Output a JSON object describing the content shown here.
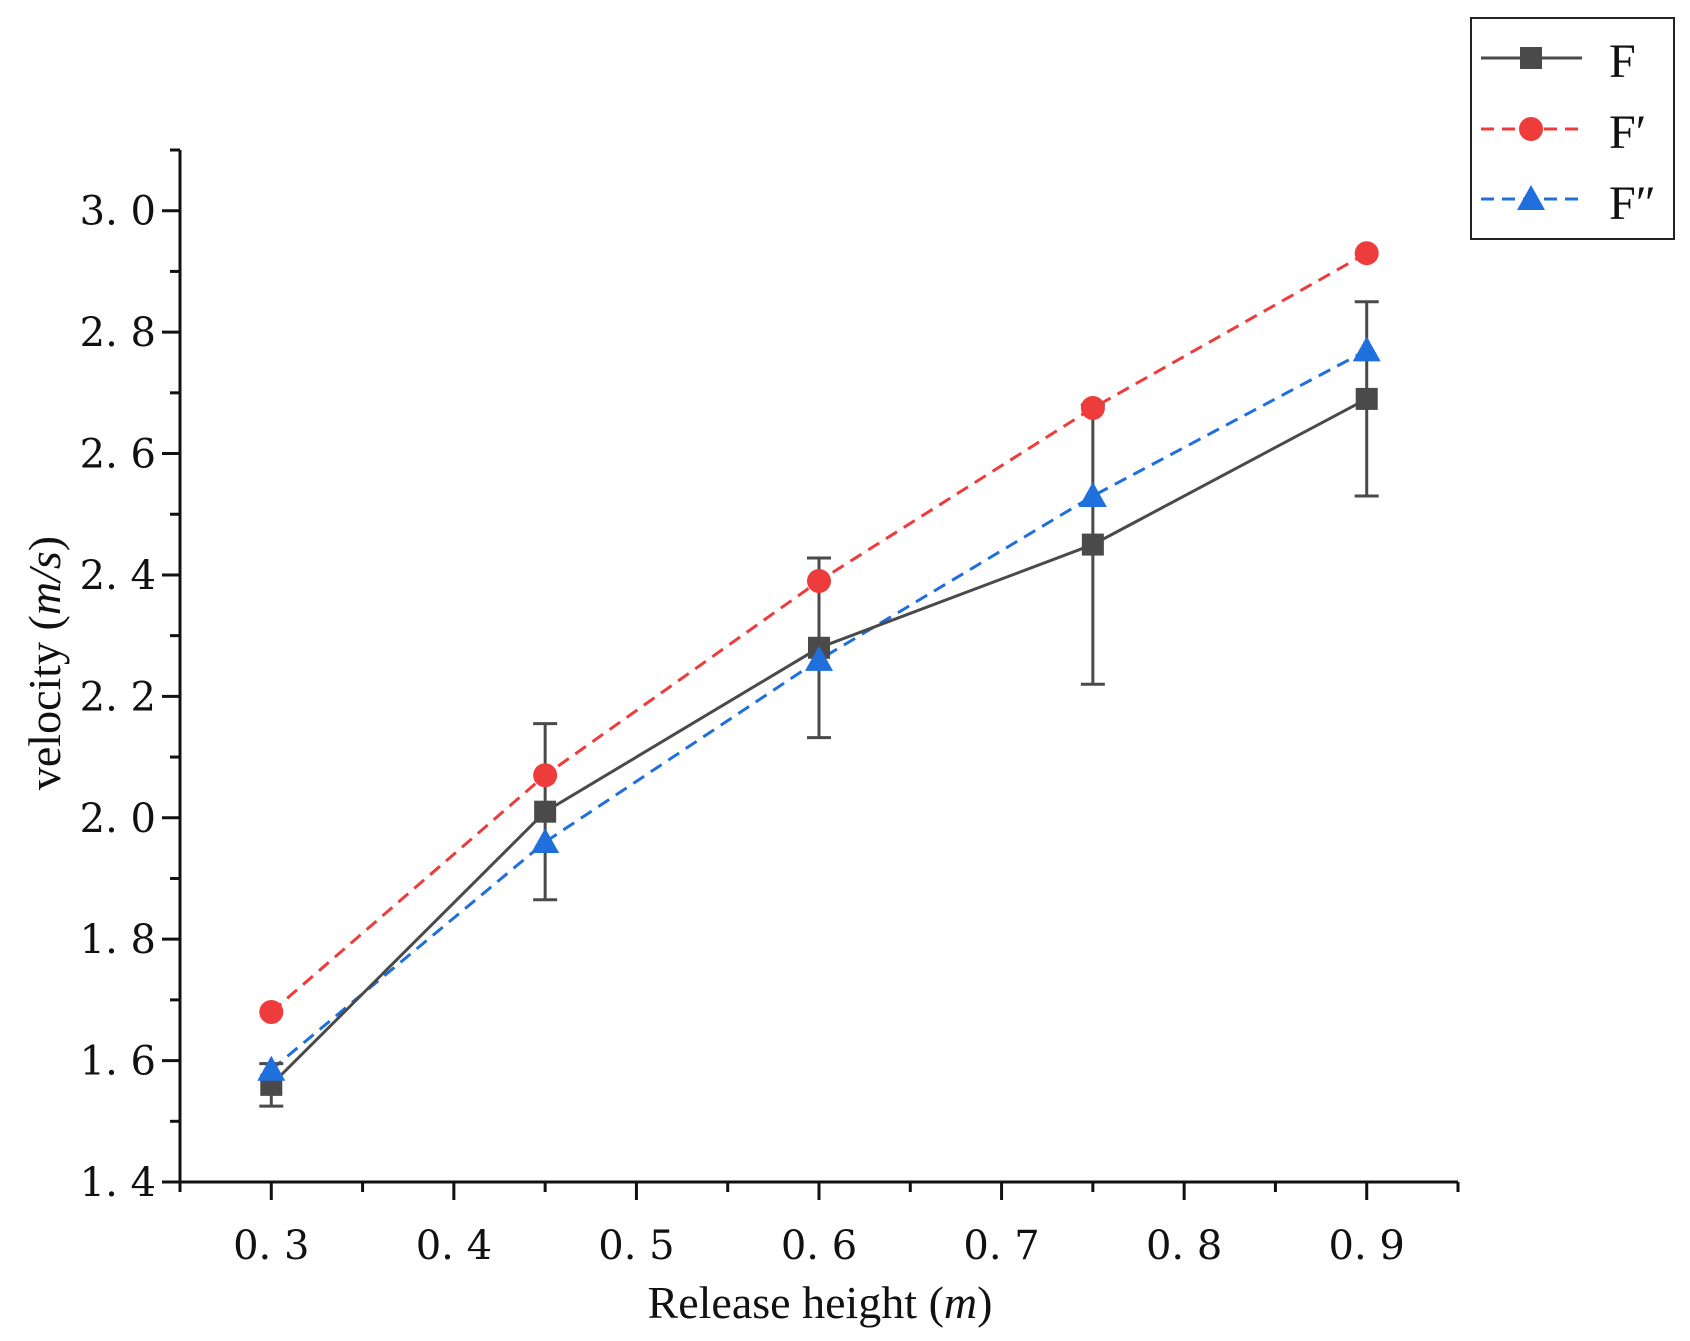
{
  "chart_data": {
    "type": "line",
    "title": "",
    "xlabel_text": "Release height",
    "xlabel_unit": "m",
    "ylabel_text": "velocity",
    "ylabel_unit": "m/s",
    "xlim": [
      0.25,
      0.95
    ],
    "ylim": [
      1.4,
      3.1
    ],
    "x_ticks": [
      0.3,
      0.4,
      0.5,
      0.6,
      0.7,
      0.8,
      0.9
    ],
    "x_tick_labels": [
      "0. 3",
      "0. 4",
      "0. 5",
      "0. 6",
      "0. 7",
      "0. 8",
      "0. 9"
    ],
    "y_ticks": [
      1.4,
      1.6,
      1.8,
      2.0,
      2.2,
      2.4,
      2.6,
      2.8,
      3.0
    ],
    "y_tick_labels": [
      "1. 4",
      "1. 6",
      "1. 8",
      "2. 0",
      "2. 2",
      "2. 4",
      "2. 6",
      "2. 8",
      "3. 0"
    ],
    "x": [
      0.3,
      0.45,
      0.6,
      0.75,
      0.9
    ],
    "series": [
      {
        "name": "F",
        "color": "#4a4a4a",
        "marker": "square",
        "line_style": "solid",
        "values": [
          1.56,
          2.01,
          2.28,
          2.45,
          2.69
        ],
        "error": [
          0.035,
          0.145,
          0.148,
          0.23,
          0.16
        ]
      },
      {
        "name": "F′",
        "color": "#ee3b3b",
        "marker": "circle",
        "line_style": "dashed",
        "values": [
          1.68,
          2.07,
          2.39,
          2.675,
          2.93
        ]
      },
      {
        "name": "F″",
        "color": "#1f6fdc",
        "marker": "triangle",
        "line_style": "dashed",
        "values": [
          1.585,
          1.96,
          2.26,
          2.53,
          2.77
        ]
      }
    ],
    "legend_position": "top-right"
  }
}
